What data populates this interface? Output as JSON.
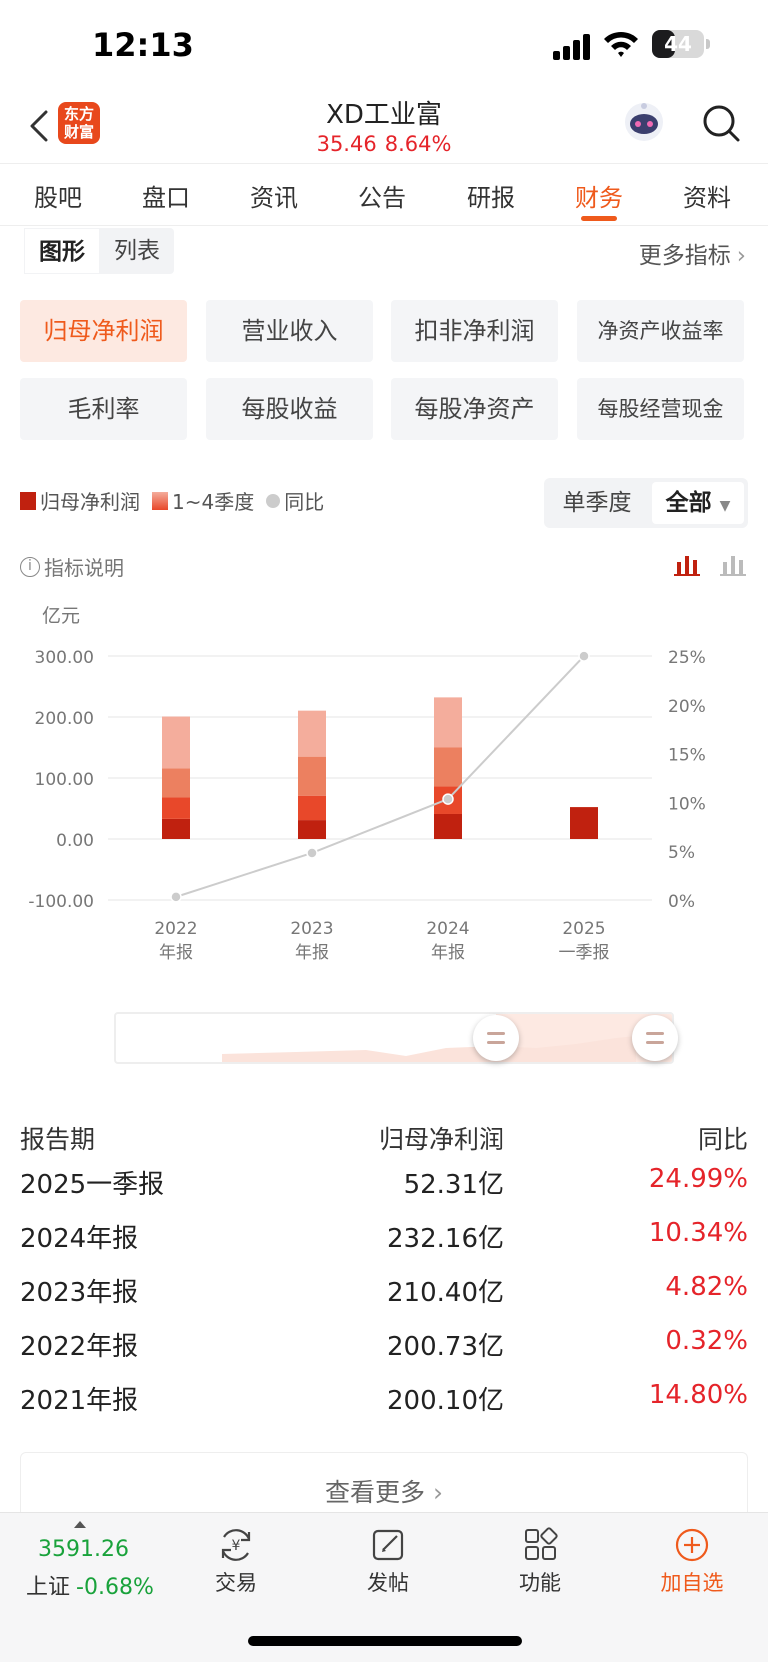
{
  "status_bar": {
    "time": "12:13",
    "battery": "44"
  },
  "header": {
    "logo_text": "东方财富",
    "stock_name": "XD工业富",
    "price": "35.46",
    "change_pct": "8.64%"
  },
  "tabs": [
    {
      "label": "股吧"
    },
    {
      "label": "盘口"
    },
    {
      "label": "资讯"
    },
    {
      "label": "公告"
    },
    {
      "label": "研报"
    },
    {
      "label": "财务"
    },
    {
      "label": "资料"
    }
  ],
  "active_tab": "财务",
  "view_toggle": {
    "graph": "图形",
    "list": "列表"
  },
  "more_metrics": "更多指标",
  "metrics": [
    {
      "label": "归母净利润",
      "active": true
    },
    {
      "label": "营业收入"
    },
    {
      "label": "扣非净利润"
    },
    {
      "label": "净资产收益率"
    },
    {
      "label": "毛利率"
    },
    {
      "label": "每股收益"
    },
    {
      "label": "每股净资产"
    },
    {
      "label": "每股经营现金"
    }
  ],
  "legend": {
    "net_profit": "归母净利润",
    "quarters": "1~4季度",
    "yoy": "同比"
  },
  "period_toggle": {
    "single": "单季度",
    "all": "全部"
  },
  "indicator_note": "指标说明",
  "colors": {
    "accent": "#ef5a1c",
    "up": "#e5242a",
    "down": "#19a23b",
    "q1": "#c0210f",
    "q2": "#e8482a",
    "q3": "#ec8060",
    "q4": "#f4ad9c"
  },
  "chart_data": {
    "type": "bar",
    "unit": "亿元",
    "categories": [
      [
        "2022",
        "年报"
      ],
      [
        "2023",
        "年报"
      ],
      [
        "2024",
        "年报"
      ],
      [
        "2025",
        "一季报"
      ]
    ],
    "series": [
      {
        "name": "Q1",
        "values": [
          33,
          31,
          41,
          52.31
        ]
      },
      {
        "name": "Q2",
        "values": [
          35,
          40,
          45,
          0
        ]
      },
      {
        "name": "Q3",
        "values": [
          48,
          64,
          64,
          0
        ]
      },
      {
        "name": "Q4",
        "values": [
          84.73,
          75.4,
          82.16,
          0
        ]
      }
    ],
    "yoy": [
      0.32,
      4.82,
      10.34,
      24.99
    ],
    "ylim": [
      -100,
      300
    ],
    "yticks": [
      "300.00",
      "200.00",
      "100.00",
      "0.00",
      "-100.00"
    ],
    "y2lim": [
      0,
      25
    ],
    "y2ticks": [
      "25%",
      "20%",
      "15%",
      "10%",
      "5%",
      "0%"
    ]
  },
  "table": {
    "headers": [
      "报告期",
      "归母净利润",
      "同比"
    ],
    "rows": [
      {
        "period": "2025一季报",
        "value": "52.31亿",
        "yoy": "24.99%"
      },
      {
        "period": "2024年报",
        "value": "232.16亿",
        "yoy": "10.34%"
      },
      {
        "period": "2023年报",
        "value": "210.40亿",
        "yoy": "4.82%"
      },
      {
        "period": "2022年报",
        "value": "200.73亿",
        "yoy": "0.32%"
      },
      {
        "period": "2021年报",
        "value": "200.10亿",
        "yoy": "14.80%"
      }
    ]
  },
  "more_button": "查看更多",
  "bottom_nav": {
    "index_value": "3591.26",
    "index_name": "上证",
    "index_change": "-0.68%",
    "items": [
      {
        "label": "交易",
        "icon": "trade-icon"
      },
      {
        "label": "发帖",
        "icon": "post-icon"
      },
      {
        "label": "功能",
        "icon": "grid-icon"
      },
      {
        "label": "加自选",
        "icon": "add-watchlist-icon"
      }
    ]
  }
}
